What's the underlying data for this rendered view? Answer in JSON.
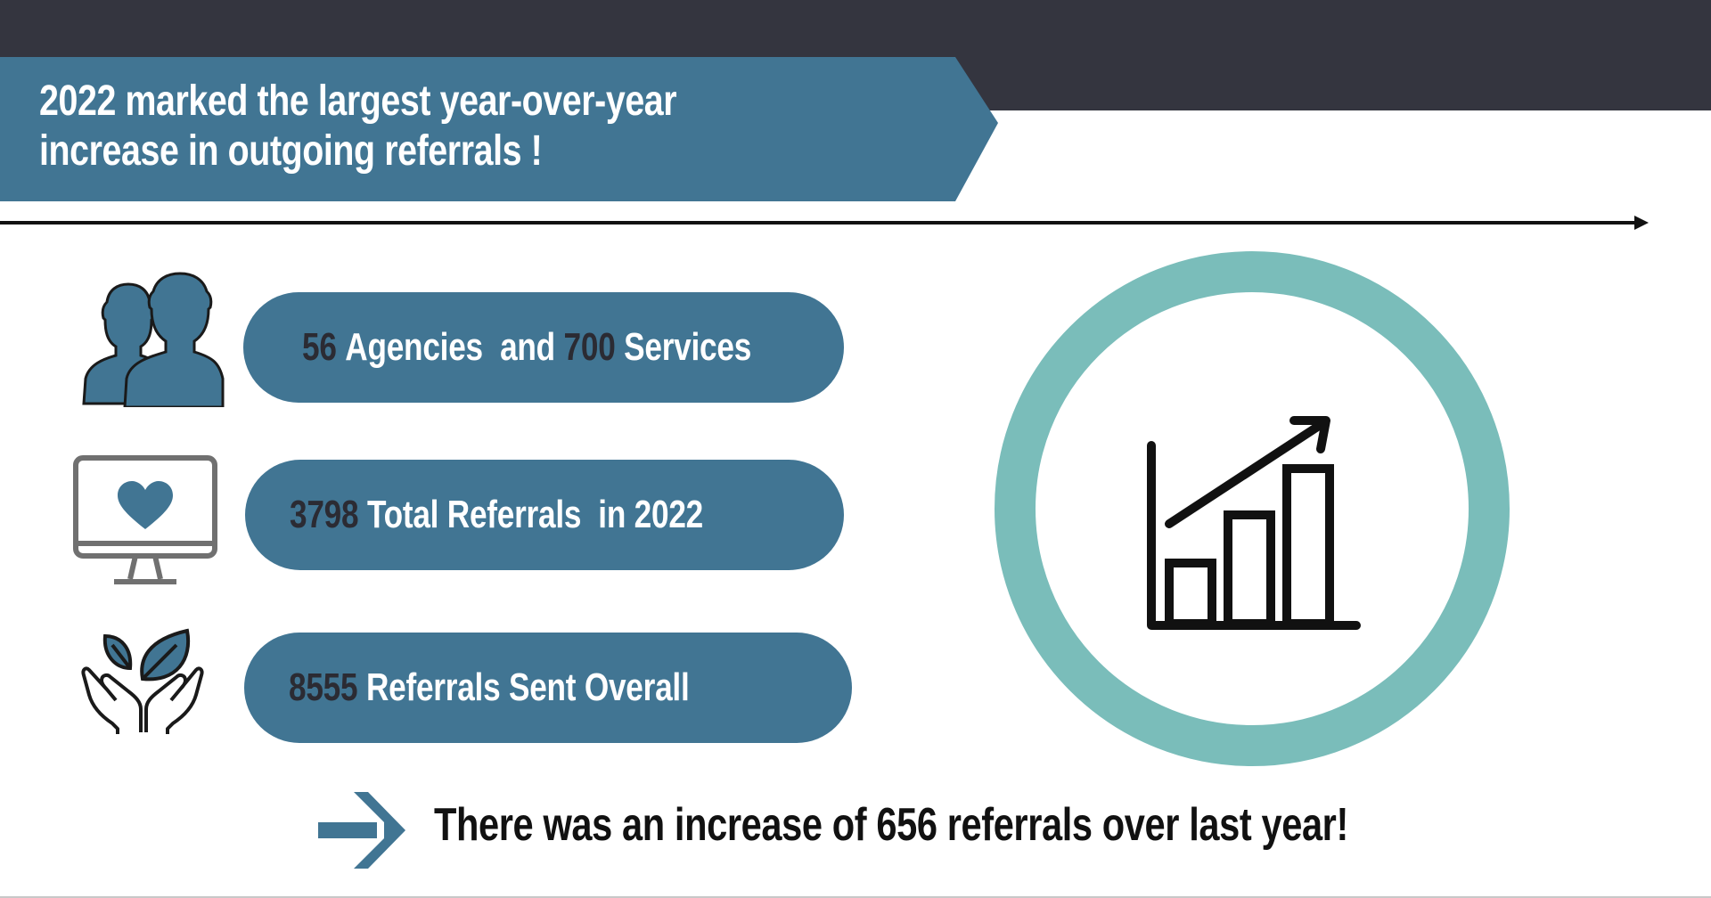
{
  "header": {
    "title": "2022 marked the largest year-over-year increase in outgoing referrals !"
  },
  "stats": [
    {
      "icon": "people-icon",
      "number1": "56",
      "label1": "Agencies",
      "connector": "and",
      "number2": "700",
      "label2": "Services"
    },
    {
      "icon": "computer-heart-icon",
      "number": "3798",
      "label": "Total Referrals  in 2022"
    },
    {
      "icon": "hands-leaves-icon",
      "number": "8555",
      "label": "Referrals Sent Overall"
    }
  ],
  "feature_icon": "bar-chart-growth-icon",
  "footer": {
    "text": "There was an increase of 656 referrals over last year!"
  },
  "colors": {
    "dark_band": "#34353f",
    "primary_blue": "#417593",
    "teal_ring": "#7abdba",
    "number_dark": "#2b2b33"
  }
}
